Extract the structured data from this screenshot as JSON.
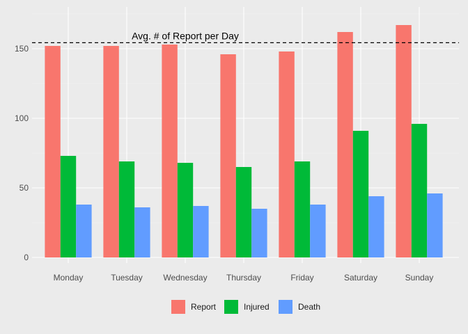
{
  "chart_data": {
    "type": "bar",
    "categories": [
      "Monday",
      "Tuesday",
      "Wednesday",
      "Thursday",
      "Friday",
      "Saturday",
      "Sunday"
    ],
    "series": [
      {
        "name": "Report",
        "color": "#F8766D",
        "values": [
          152,
          152,
          153,
          146,
          148,
          162,
          167
        ]
      },
      {
        "name": "Injured",
        "color": "#00BA38",
        "values": [
          73,
          69,
          68,
          65,
          69,
          91,
          96
        ]
      },
      {
        "name": "Death",
        "color": "#619CFF",
        "values": [
          38,
          36,
          37,
          35,
          38,
          44,
          46
        ]
      }
    ],
    "ylim": [
      0,
      175
    ],
    "yticks": [
      0,
      50,
      100,
      150
    ],
    "grid": true,
    "legend_position": "bottom",
    "reference_line": {
      "value": 154.3,
      "style": "dashed",
      "color": "#000000"
    },
    "annotation": {
      "text": "Avg. # of Report per Day"
    }
  }
}
